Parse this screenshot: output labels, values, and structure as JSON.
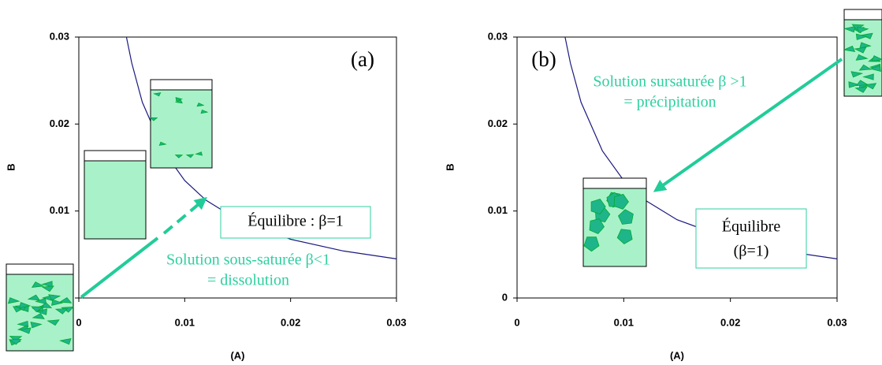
{
  "chart_data": [
    {
      "type": "line",
      "panel_label": "(a)",
      "xlabel": "(A)",
      "ylabel": "B",
      "xlim": [
        0,
        0.03
      ],
      "ylim": [
        0,
        0.03
      ],
      "xticks": [
        0,
        0.01,
        0.02,
        0.03
      ],
      "yticks": [
        0,
        0.01,
        0.02,
        0.03
      ],
      "series": [
        {
          "color": "#1a1a80",
          "x": [
            0.0045,
            0.005,
            0.006,
            0.008,
            0.01,
            0.012,
            0.015,
            0.02,
            0.025,
            0.03
          ],
          "values": [
            0.03,
            0.027,
            0.0225,
            0.0169,
            0.0135,
            0.01125,
            0.009,
            0.00675,
            0.0054,
            0.0045
          ]
        }
      ],
      "annotation_color": "#2fcfa0",
      "annotations": [
        "Équilibre : β=1",
        "Solution sous-saturée β<1",
        "= dissolution"
      ]
    },
    {
      "type": "line",
      "panel_label": "(b)",
      "xlabel": "(A)",
      "ylabel": "B",
      "xlim": [
        0,
        0.03
      ],
      "ylim": [
        0,
        0.03
      ],
      "xticks": [
        0,
        0.01,
        0.02,
        0.03
      ],
      "yticks": [
        0,
        0.01,
        0.02,
        0.03
      ],
      "series": [
        {
          "color": "#1a1a80",
          "x": [
            0.0045,
            0.005,
            0.006,
            0.008,
            0.01,
            0.012,
            0.015,
            0.02,
            0.025,
            0.03
          ],
          "values": [
            0.03,
            0.027,
            0.0225,
            0.0169,
            0.0135,
            0.01125,
            0.009,
            0.00675,
            0.0054,
            0.0045
          ]
        }
      ],
      "annotation_color": "#2fcfa0",
      "annotations": [
        "Solution sursaturée β >1",
        "= précipitation",
        "Équilibre",
        "(β=1)"
      ]
    }
  ]
}
